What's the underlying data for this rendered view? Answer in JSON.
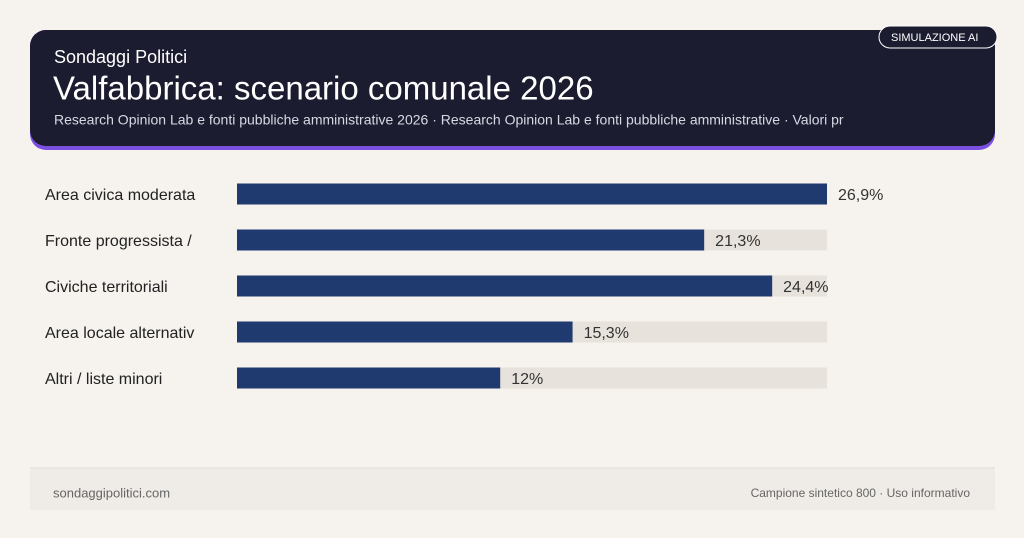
{
  "header": {
    "kicker": "Sondaggi Politici",
    "title": "Valfabbrica: scenario comunale 2026",
    "subtitle": "Research Opinion Lab e fonti pubbliche amministrative 2026 · Research Opinion Lab e fonti pubbliche amministrative · Valori pr",
    "badge": "SIMULAZIONE AI"
  },
  "chart_data": {
    "type": "bar",
    "orientation": "horizontal",
    "categories": [
      "Area civica moderata",
      "Fronte progressista /",
      "Civiche territoriali",
      "Area locale alternativ",
      "Altri / liste minori"
    ],
    "values": [
      26.9,
      21.3,
      24.4,
      15.3,
      12
    ],
    "value_labels": [
      "26,9%",
      "21,3%",
      "24,4%",
      "15,3%",
      "12%"
    ],
    "color": "#1f3a6e",
    "xlim": [
      0,
      26.9
    ]
  },
  "footer": {
    "left": "sondaggipolitici.com",
    "right": "Campione sintetico 800 · Uso informativo"
  }
}
